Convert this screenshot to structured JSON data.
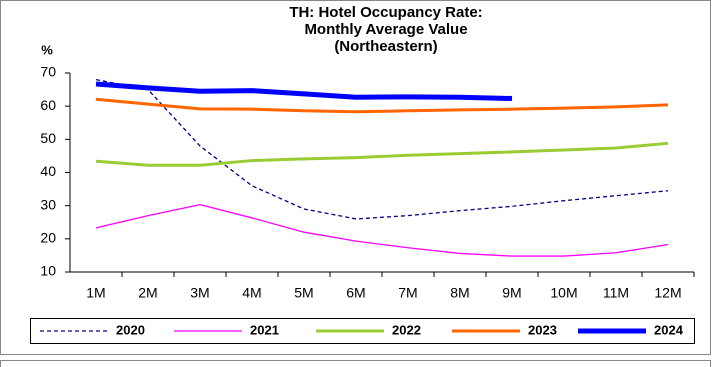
{
  "chart_data": {
    "type": "line",
    "title": [
      "TH: Hotel Occupancy Rate:",
      "Monthly Average Value",
      "(Northeastern)"
    ],
    "y_label": "%",
    "categories": [
      "1M",
      "2M",
      "3M",
      "4M",
      "5M",
      "6M",
      "7M",
      "8M",
      "9M",
      "10M",
      "11M",
      "12M"
    ],
    "series": [
      {
        "name": "2020",
        "color": "#000080",
        "values": [
          68,
          65,
          48,
          36,
          29,
          26,
          27,
          28.5,
          29.8,
          31.5,
          33,
          34.5
        ]
      },
      {
        "name": "2021",
        "color": "#ff00ff",
        "values": [
          23.3,
          27,
          30.3,
          26.3,
          22,
          19.3,
          17.3,
          15.6,
          14.8,
          14.8,
          15.8,
          18.3
        ]
      },
      {
        "name": "2022",
        "color": "#99cc33",
        "values": [
          43.4,
          42.2,
          42.2,
          43.6,
          44.1,
          44.5,
          45.2,
          45.7,
          46.2,
          46.8,
          47.4,
          48.8
        ]
      },
      {
        "name": "2023",
        "color": "#ff6600",
        "values": [
          62.1,
          60.6,
          59.2,
          59.1,
          58.6,
          58.3,
          58.6,
          58.9,
          59.1,
          59.4,
          59.8,
          60.4
        ]
      },
      {
        "name": "2024",
        "color": "#0000ff",
        "values": [
          66.7,
          65.5,
          64.5,
          64.7,
          63.7,
          62.7,
          62.8,
          62.7,
          62.3,
          null,
          null,
          null
        ]
      }
    ],
    "ylim": [
      10,
      70
    ],
    "yticks": [
      10,
      20,
      30,
      40,
      50,
      60,
      70
    ],
    "grid": false,
    "legend": "bottom"
  }
}
